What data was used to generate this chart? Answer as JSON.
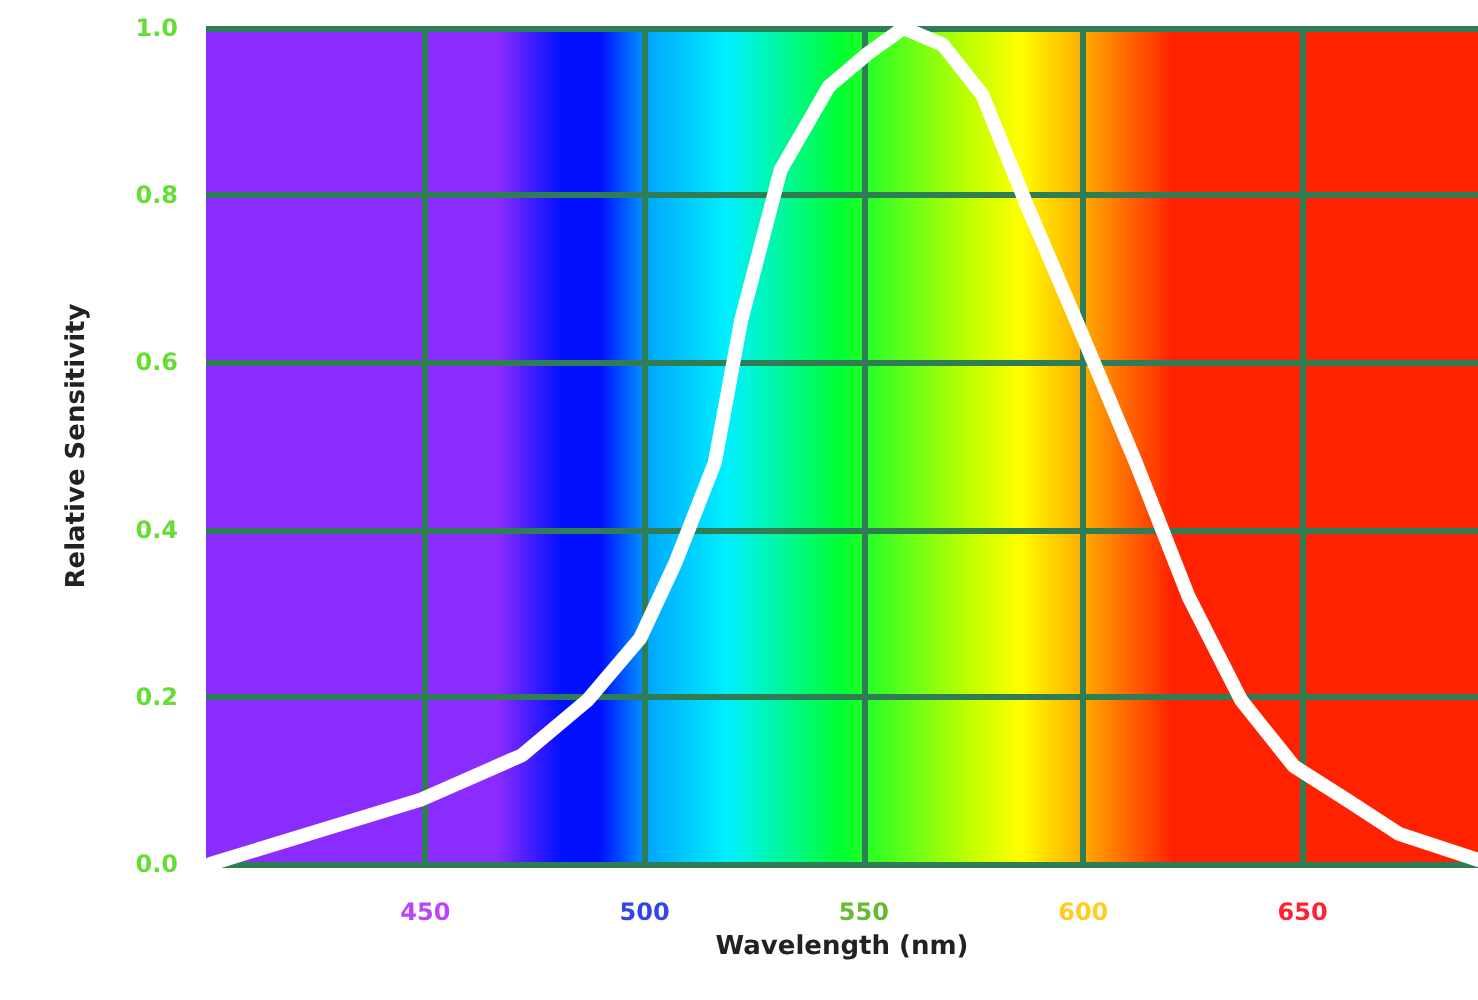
{
  "chart_data": {
    "type": "line",
    "xlabel": "Wavelength (nm)",
    "ylabel": "Relative Sensitivity",
    "x": [
      401,
      449,
      472,
      487,
      499,
      507,
      516,
      522,
      531,
      542,
      551,
      559,
      568,
      577,
      587,
      600,
      612,
      624,
      636,
      648,
      660,
      672,
      690
    ],
    "series": [
      {
        "color": "#ffffff",
        "values": [
          0.0,
          0.077,
          0.13,
          0.196,
          0.27,
          0.36,
          0.48,
          0.65,
          0.83,
          0.93,
          0.97,
          1.0,
          0.98,
          0.92,
          0.79,
          0.63,
          0.48,
          0.32,
          0.196,
          0.117,
          0.077,
          0.036,
          0.005
        ]
      }
    ],
    "xlim": [
      400,
      690
    ],
    "xticks": [
      450,
      500,
      550,
      600,
      650
    ],
    "ylim": [
      0,
      1
    ],
    "yticks": [
      {
        "value": 0,
        "label": "0.0"
      },
      {
        "value": 0.2,
        "label": "0.2"
      },
      {
        "value": 0.4,
        "label": "0.4"
      },
      {
        "value": 0.6,
        "label": "0.6"
      },
      {
        "value": 0.8,
        "label": "0.8"
      },
      {
        "value": 1,
        "label": "1.0"
      }
    ],
    "grid": true,
    "line_style": "solid"
  }
}
